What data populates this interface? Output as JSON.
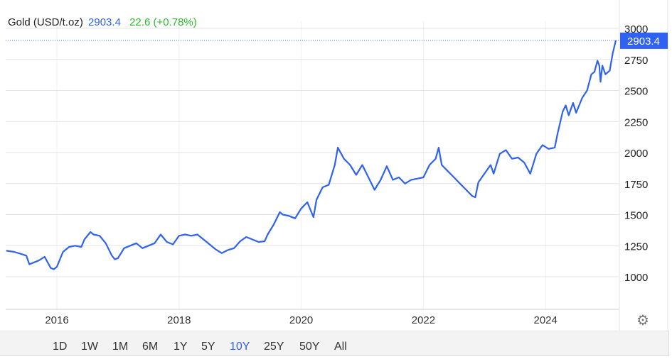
{
  "header": {
    "title": "Gold (USD/t.oz)",
    "price": "2903.4",
    "change": "22.6 (+0.78%)"
  },
  "colors": {
    "line": "#2f62f0",
    "change_positive": "#2ab92a",
    "active_range": "#2f62f0"
  },
  "price_tag": "2903.4",
  "ranges": [
    {
      "label": "1D"
    },
    {
      "label": "1W"
    },
    {
      "label": "1M"
    },
    {
      "label": "6M"
    },
    {
      "label": "1Y"
    },
    {
      "label": "5Y"
    },
    {
      "label": "10Y",
      "active": true
    },
    {
      "label": "25Y"
    },
    {
      "label": "50Y"
    },
    {
      "label": "All"
    }
  ],
  "settings_icon": "gear-icon",
  "chart_data": {
    "type": "line",
    "title": "",
    "xlabel": "",
    "ylabel": "",
    "ylim": [
      1000,
      3000
    ],
    "y_ticks": [
      "1000",
      "1250",
      "1500",
      "1750",
      "2000",
      "2250",
      "2500",
      "2750",
      "3000"
    ],
    "x_ticks": [
      "2016",
      "2018",
      "2020",
      "2022",
      "2024"
    ],
    "y_axis_position": "right",
    "grid": true,
    "series": [
      {
        "x": [
          2015.17,
          2015.3,
          2015.4,
          2015.5,
          2015.55,
          2015.7,
          2015.8,
          2015.9,
          2015.95,
          2016.0,
          2016.1,
          2016.2,
          2016.3,
          2016.4,
          2016.45,
          2016.55,
          2016.6,
          2016.7,
          2016.8,
          2016.9,
          2016.95,
          2017.0,
          2017.1,
          2017.2,
          2017.3,
          2017.4,
          2017.5,
          2017.6,
          2017.7,
          2017.8,
          2017.9,
          2018.0,
          2018.1,
          2018.2,
          2018.3,
          2018.4,
          2018.5,
          2018.6,
          2018.7,
          2018.8,
          2018.9,
          2019.0,
          2019.1,
          2019.2,
          2019.3,
          2019.4,
          2019.45,
          2019.55,
          2019.65,
          2019.7,
          2019.8,
          2019.9,
          2020.0,
          2020.1,
          2020.2,
          2020.25,
          2020.35,
          2020.45,
          2020.55,
          2020.6,
          2020.7,
          2020.8,
          2020.9,
          2021.0,
          2021.1,
          2021.2,
          2021.3,
          2021.4,
          2021.5,
          2021.6,
          2021.7,
          2021.8,
          2021.9,
          2022.0,
          2022.1,
          2022.2,
          2022.25,
          2022.3,
          2022.4,
          2022.5,
          2022.6,
          2022.7,
          2022.8,
          2022.85,
          2022.9,
          2023.0,
          2023.1,
          2023.15,
          2023.25,
          2023.35,
          2023.45,
          2023.55,
          2023.65,
          2023.75,
          2023.85,
          2023.95,
          2024.05,
          2024.15,
          2024.2,
          2024.28,
          2024.33,
          2024.38,
          2024.45,
          2024.5,
          2024.6,
          2024.68,
          2024.75,
          2024.8,
          2024.85,
          2024.88,
          2024.9,
          2024.93,
          2024.98,
          2025.05,
          2025.1,
          2025.15
        ],
        "y": [
          1210,
          1200,
          1185,
          1170,
          1100,
          1130,
          1160,
          1070,
          1060,
          1080,
          1200,
          1240,
          1250,
          1240,
          1300,
          1360,
          1340,
          1330,
          1270,
          1170,
          1140,
          1150,
          1230,
          1250,
          1270,
          1230,
          1250,
          1270,
          1340,
          1280,
          1260,
          1330,
          1340,
          1330,
          1340,
          1300,
          1260,
          1220,
          1190,
          1215,
          1230,
          1285,
          1320,
          1300,
          1280,
          1285,
          1340,
          1420,
          1520,
          1500,
          1490,
          1470,
          1550,
          1600,
          1480,
          1620,
          1720,
          1740,
          1900,
          2040,
          1950,
          1900,
          1820,
          1900,
          1800,
          1700,
          1780,
          1890,
          1780,
          1800,
          1750,
          1780,
          1790,
          1800,
          1900,
          1950,
          2040,
          1900,
          1850,
          1800,
          1750,
          1700,
          1650,
          1640,
          1760,
          1830,
          1900,
          1830,
          1990,
          2020,
          1950,
          1960,
          1920,
          1830,
          1990,
          2060,
          2030,
          2040,
          2160,
          2330,
          2380,
          2300,
          2400,
          2320,
          2440,
          2500,
          2630,
          2650,
          2740,
          2700,
          2570,
          2700,
          2630,
          2660,
          2800,
          2903.4
        ]
      }
    ]
  }
}
